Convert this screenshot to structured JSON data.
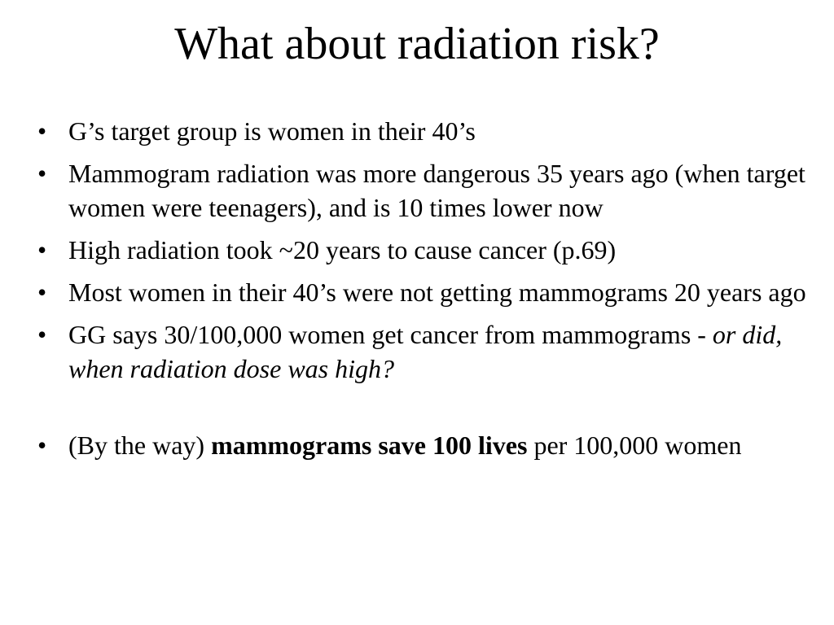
{
  "slide": {
    "title": "What about radiation risk?",
    "bullet_glyph": "•",
    "bullets": [
      {
        "text": "G’s target group is women in their 40’s"
      },
      {
        "text": "Mammogram radiation was more dangerous 35 years ago (when target women were teenagers), and is 10 times lower now"
      },
      {
        "text": "High radiation took ~20 years to cause cancer (p.69)"
      },
      {
        "text": "Most women in their 40’s were not getting mammograms 20 years ago"
      },
      {
        "text_plain": "GG says 30/100,000 women get cancer from mammograms - ",
        "text_italic": "or did, when radiation dose was high?"
      },
      {
        "text_before": "(By the way) ",
        "text_bold": "mammograms save 100 lives",
        "text_after": " per 100,000 women"
      }
    ]
  }
}
